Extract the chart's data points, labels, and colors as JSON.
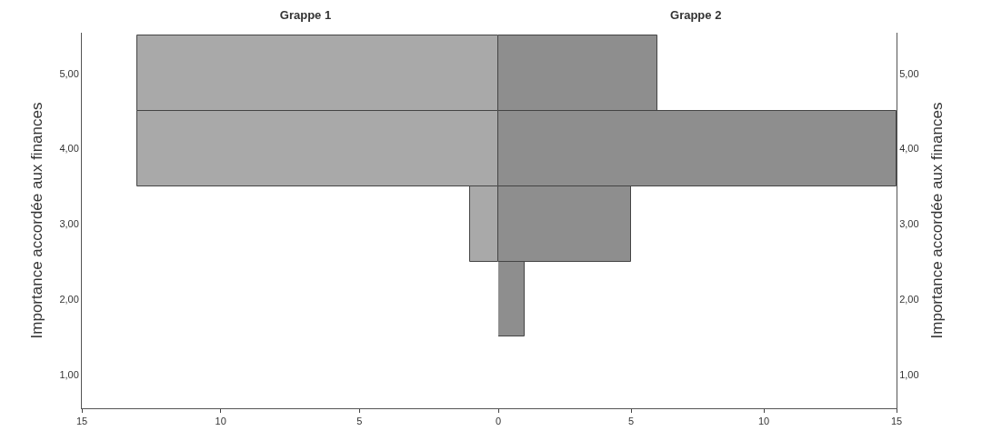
{
  "chart_data": [
    {
      "type": "bar",
      "orientation": "horizontal",
      "title": "Grappe 1",
      "ylabel": "Importance accordée aux finances",
      "categories": [
        "5,00",
        "4,00",
        "3,00",
        "2,00",
        "1,00"
      ],
      "values": [
        13,
        13,
        1,
        0,
        0
      ],
      "color": "#a9a9a9",
      "xlim": [
        15,
        0
      ],
      "xticks": [
        15,
        10,
        5,
        0
      ],
      "grid": false,
      "legend": false
    },
    {
      "type": "bar",
      "orientation": "horizontal",
      "title": "Grappe 2",
      "ylabel": "Importance accordée aux finances",
      "categories": [
        "5,00",
        "4,00",
        "3,00",
        "2,00",
        "1,00"
      ],
      "values": [
        6,
        15,
        5,
        1,
        0
      ],
      "color": "#8e8e8e",
      "xlim": [
        0,
        15
      ],
      "xticks": [
        {
          "value": 0,
          "label": null
        },
        5,
        10,
        15
      ],
      "grid": false,
      "legend": false
    }
  ]
}
